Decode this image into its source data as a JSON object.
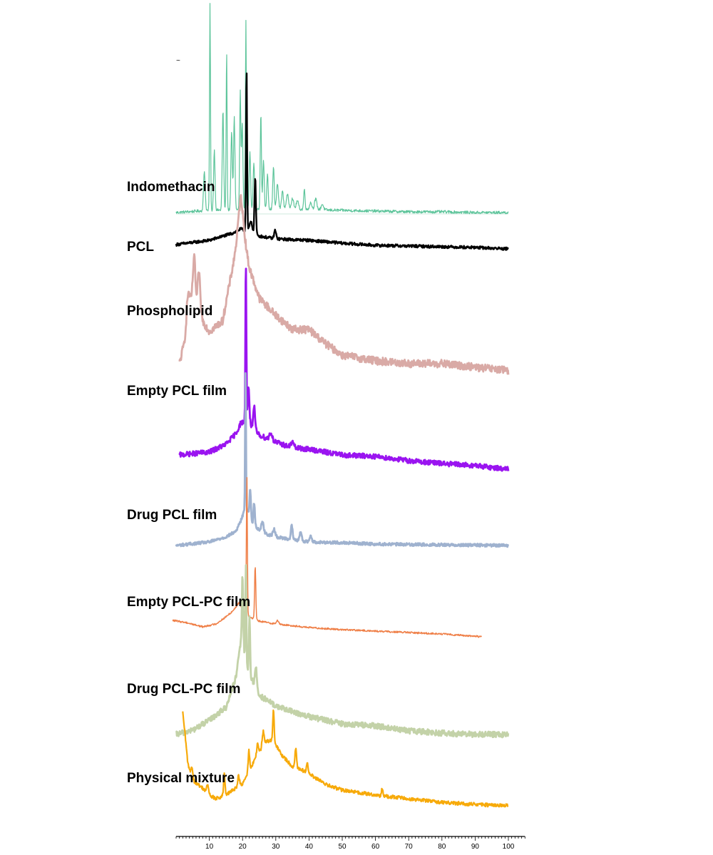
{
  "chart_data": {
    "type": "line",
    "title": "",
    "xlabel": "",
    "ylabel": "",
    "xlim": [
      0,
      105
    ],
    "x_ticks": [
      10,
      20,
      30,
      40,
      50,
      60,
      70,
      80,
      90,
      100
    ],
    "x_tick_labels": [
      "10",
      "20",
      "30",
      "40",
      "50",
      "60",
      "70",
      "80",
      "90",
      "100"
    ],
    "legend": "labels placed beside each trace on the left",
    "series": [
      {
        "name": "Indomethacin",
        "color": "#5cc49a",
        "width": 1.2,
        "noise": 2.0,
        "x_start": 0,
        "x_end": 100,
        "profile": [
          [
            0,
            0
          ],
          [
            10,
            3
          ],
          [
            20,
            4
          ],
          [
            30,
            5
          ],
          [
            40,
            4
          ],
          [
            50,
            3
          ],
          [
            60,
            2
          ],
          [
            70,
            1
          ],
          [
            80,
            1
          ],
          [
            90,
            0
          ],
          [
            100,
            0
          ]
        ],
        "peaks": [
          [
            8.5,
            55,
            0.35
          ],
          [
            10.2,
            292,
            0.2
          ],
          [
            11.5,
            85,
            0.3
          ],
          [
            14.1,
            140,
            0.3
          ],
          [
            15.2,
            225,
            0.2
          ],
          [
            16.7,
            110,
            0.3
          ],
          [
            17.5,
            130,
            0.3
          ],
          [
            19.3,
            165,
            0.25
          ],
          [
            19.9,
            120,
            0.3
          ],
          [
            21.0,
            265,
            0.2
          ],
          [
            22.2,
            80,
            0.3
          ],
          [
            23.4,
            65,
            0.3
          ],
          [
            25.5,
            135,
            0.25
          ],
          [
            26.3,
            70,
            0.3
          ],
          [
            27.5,
            50,
            0.3
          ],
          [
            29.3,
            60,
            0.3
          ],
          [
            30.5,
            35,
            0.4
          ],
          [
            32.0,
            25,
            0.4
          ],
          [
            33.5,
            20,
            0.5
          ],
          [
            35.0,
            15,
            0.5
          ],
          [
            36.5,
            12,
            0.5
          ],
          [
            38.6,
            28,
            0.3
          ],
          [
            40.5,
            10,
            0.5
          ],
          [
            42.0,
            15,
            0.5
          ],
          [
            44.0,
            8,
            0.5
          ]
        ]
      },
      {
        "name": "PCL",
        "color": "#000000",
        "width": 2.4,
        "noise": 2.0,
        "x_start": 0,
        "x_end": 100,
        "profile": [
          [
            0,
            6
          ],
          [
            10,
            12
          ],
          [
            17,
            22
          ],
          [
            19.5,
            28
          ],
          [
            25,
            18
          ],
          [
            30,
            14
          ],
          [
            40,
            12
          ],
          [
            50,
            8
          ],
          [
            60,
            5
          ],
          [
            70,
            4
          ],
          [
            80,
            3
          ],
          [
            90,
            2
          ],
          [
            100,
            0
          ]
        ],
        "peaks": [
          [
            21.2,
            230,
            0.22
          ],
          [
            23.8,
            80,
            0.3
          ],
          [
            22.5,
            15,
            0.6
          ],
          [
            29.8,
            12,
            0.4
          ]
        ]
      },
      {
        "name": "Phospholipid",
        "color": "#d9aaa6",
        "width": 2.8,
        "noise": 5.5,
        "x_start": 1,
        "x_end": 100,
        "profile": [
          [
            1,
            0
          ],
          [
            2,
            20
          ],
          [
            3,
            40
          ],
          [
            4,
            80
          ],
          [
            5,
            100
          ],
          [
            6,
            75
          ],
          [
            7,
            90
          ],
          [
            8,
            60
          ],
          [
            10,
            45
          ],
          [
            14,
            60
          ],
          [
            16,
            110
          ],
          [
            18,
            160
          ],
          [
            19.5,
            210
          ],
          [
            20.5,
            175
          ],
          [
            22,
            135
          ],
          [
            25,
            92
          ],
          [
            30,
            68
          ],
          [
            35,
            48
          ],
          [
            40,
            48
          ],
          [
            45,
            28
          ],
          [
            50,
            12
          ],
          [
            60,
            4
          ],
          [
            70,
            0
          ],
          [
            80,
            0
          ],
          [
            90,
            -5
          ],
          [
            100,
            -10
          ]
        ],
        "peaks": [
          [
            3.5,
            35,
            0.6
          ],
          [
            5.5,
            60,
            0.5
          ],
          [
            6.8,
            40,
            0.5
          ],
          [
            19.5,
            25,
            1.2
          ]
        ]
      },
      {
        "name": "Empty PCL film",
        "color": "#9a14f0",
        "width": 2.8,
        "noise": 3.5,
        "x_start": 1,
        "x_end": 100,
        "profile": [
          [
            1,
            0
          ],
          [
            10,
            4
          ],
          [
            15,
            15
          ],
          [
            18,
            30
          ],
          [
            19.5,
            45
          ],
          [
            21,
            48
          ],
          [
            23,
            40
          ],
          [
            25,
            28
          ],
          [
            30,
            18
          ],
          [
            35,
            10
          ],
          [
            40,
            8
          ],
          [
            50,
            0
          ],
          [
            60,
            -2
          ],
          [
            70,
            -8
          ],
          [
            80,
            -12
          ],
          [
            90,
            -15
          ],
          [
            100,
            -20
          ]
        ],
        "peaks": [
          [
            21.0,
            225,
            0.2
          ],
          [
            21.8,
            50,
            0.35
          ],
          [
            23.5,
            30,
            0.35
          ],
          [
            28.5,
            10,
            0.6
          ],
          [
            35.0,
            8,
            0.6
          ]
        ]
      },
      {
        "name": "Drug PCL film",
        "color": "#9fb2cf",
        "width": 2.8,
        "noise": 2.0,
        "x_start": 0,
        "x_end": 100,
        "profile": [
          [
            0,
            0
          ],
          [
            10,
            5
          ],
          [
            15,
            12
          ],
          [
            18,
            20
          ],
          [
            19.5,
            35
          ],
          [
            21,
            55
          ],
          [
            23,
            30
          ],
          [
            26,
            18
          ],
          [
            30,
            12
          ],
          [
            40,
            5
          ],
          [
            50,
            4
          ],
          [
            60,
            2
          ],
          [
            80,
            1
          ],
          [
            100,
            0
          ]
        ],
        "peaks": [
          [
            20.9,
            190,
            0.18
          ],
          [
            22.3,
            40,
            0.3
          ],
          [
            23.5,
            32,
            0.3
          ],
          [
            26.0,
            15,
            0.5
          ],
          [
            29.5,
            10,
            0.5
          ],
          [
            34.8,
            20,
            0.35
          ],
          [
            37.5,
            12,
            0.4
          ],
          [
            40.5,
            8,
            0.5
          ]
        ]
      },
      {
        "name": "Empty PCL-PC film",
        "color": "#ef7f47",
        "width": 1.5,
        "noise": 1.2,
        "x_start": -1,
        "x_end": 92,
        "profile": [
          [
            -1,
            15
          ],
          [
            3,
            12
          ],
          [
            8,
            6
          ],
          [
            12,
            10
          ],
          [
            15,
            20
          ],
          [
            17,
            28
          ],
          [
            19,
            40
          ],
          [
            20,
            30
          ],
          [
            22,
            20
          ],
          [
            25,
            14
          ],
          [
            30,
            10
          ],
          [
            40,
            5
          ],
          [
            50,
            2
          ],
          [
            60,
            0
          ],
          [
            70,
            -2
          ],
          [
            80,
            -4
          ],
          [
            92,
            -8
          ]
        ],
        "peaks": [
          [
            21.3,
            195,
            0.2
          ],
          [
            23.8,
            75,
            0.25
          ],
          [
            30.5,
            5,
            0.5
          ]
        ]
      },
      {
        "name": "Drug PCL-PC film",
        "color": "#c3d2a8",
        "width": 2.8,
        "noise": 4.0,
        "x_start": 0,
        "x_end": 100,
        "profile": [
          [
            0,
            0
          ],
          [
            5,
            6
          ],
          [
            10,
            20
          ],
          [
            15,
            38
          ],
          [
            18,
            80
          ],
          [
            19.8,
            140
          ],
          [
            21,
            100
          ],
          [
            22.5,
            80
          ],
          [
            25,
            55
          ],
          [
            30,
            40
          ],
          [
            35,
            32
          ],
          [
            40,
            25
          ],
          [
            50,
            15
          ],
          [
            60,
            12
          ],
          [
            70,
            5
          ],
          [
            80,
            2
          ],
          [
            90,
            0
          ],
          [
            100,
            0
          ]
        ],
        "peaks": [
          [
            20.0,
            90,
            0.25
          ],
          [
            21.0,
            140,
            0.2
          ],
          [
            22.1,
            80,
            0.25
          ],
          [
            24.0,
            30,
            0.4
          ]
        ]
      },
      {
        "name": "Physical mixture",
        "color": "#f7aa0a",
        "width": 2.2,
        "noise": 2.5,
        "x_start": 2,
        "x_end": 100,
        "profile": [
          [
            2,
            130
          ],
          [
            2.7,
            100
          ],
          [
            3.5,
            60
          ],
          [
            5,
            35
          ],
          [
            8,
            25
          ],
          [
            10,
            15
          ],
          [
            12,
            10
          ],
          [
            15,
            15
          ],
          [
            18,
            25
          ],
          [
            20,
            30
          ],
          [
            22,
            50
          ],
          [
            25,
            75
          ],
          [
            27,
            90
          ],
          [
            28.5,
            92
          ],
          [
            30,
            85
          ],
          [
            32,
            70
          ],
          [
            35,
            55
          ],
          [
            38,
            50
          ],
          [
            40,
            45
          ],
          [
            45,
            30
          ],
          [
            50,
            22
          ],
          [
            60,
            15
          ],
          [
            70,
            10
          ],
          [
            80,
            5
          ],
          [
            90,
            2
          ],
          [
            100,
            0
          ]
        ],
        "peaks": [
          [
            4.8,
            15,
            0.4
          ],
          [
            9.5,
            12,
            0.4
          ],
          [
            14.5,
            30,
            0.3
          ],
          [
            18.8,
            15,
            0.4
          ],
          [
            21.9,
            28,
            0.3
          ],
          [
            24.5,
            15,
            0.4
          ],
          [
            26.2,
            20,
            0.4
          ],
          [
            29.3,
            45,
            0.3
          ],
          [
            36.0,
            28,
            0.35
          ],
          [
            39.5,
            12,
            0.4
          ],
          [
            62.0,
            10,
            0.3
          ]
        ]
      }
    ]
  },
  "small_mark": "~"
}
